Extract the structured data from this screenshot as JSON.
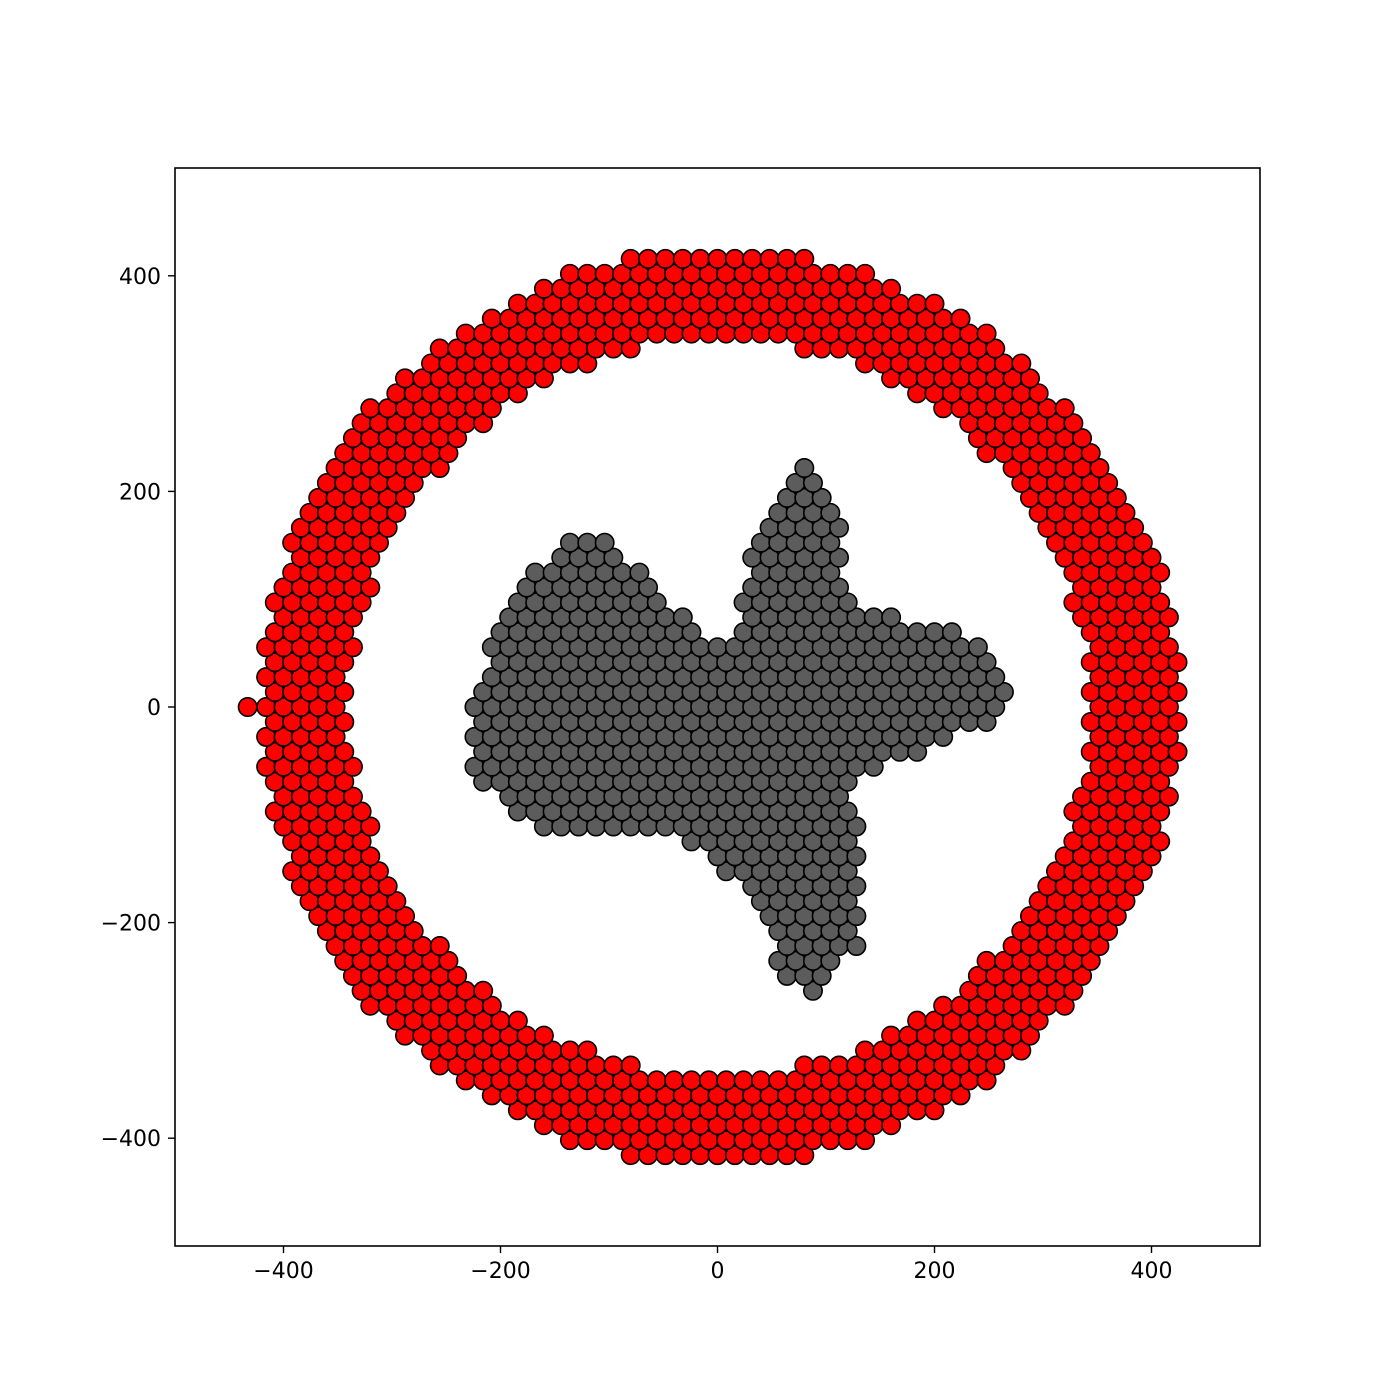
{
  "chart_data": {
    "type": "scatter",
    "title": "",
    "xlabel": "",
    "ylabel": "",
    "xlim": [
      -500,
      500
    ],
    "ylim": [
      -500,
      500
    ],
    "xticks": [
      -400,
      -200,
      0,
      200,
      400
    ],
    "yticks": [
      -400,
      -200,
      0,
      200,
      400
    ],
    "xtick_labels": [
      "−400",
      "−200",
      "0",
      "200",
      "400"
    ],
    "ytick_labels": [
      "−400",
      "−200",
      "0",
      "200",
      "400"
    ],
    "grid": false,
    "legend": "none",
    "lattice_spacing": 16,
    "marker_edge_color": "#000000",
    "series": [
      {
        "color": "#ff0000",
        "shape": "ring",
        "center": [
          2,
          0
        ],
        "inner_radius": 340,
        "outer_radius": 425,
        "extra_points": [
          [
            -433,
            0
          ]
        ]
      },
      {
        "color": "#5c5c5c",
        "shape": "blob",
        "outline": [
          [
            -228,
            -15
          ],
          [
            -215,
            40
          ],
          [
            -200,
            85
          ],
          [
            -185,
            110
          ],
          [
            -155,
            140
          ],
          [
            -132,
            158
          ],
          [
            -108,
            156
          ],
          [
            -70,
            124
          ],
          [
            -42,
            98
          ],
          [
            -20,
            72
          ],
          [
            5,
            55
          ],
          [
            20,
            78
          ],
          [
            25,
            125
          ],
          [
            35,
            168
          ],
          [
            58,
            200
          ],
          [
            80,
            230
          ],
          [
            100,
            218
          ],
          [
            108,
            180
          ],
          [
            118,
            160
          ],
          [
            118,
            135
          ],
          [
            115,
            110
          ],
          [
            125,
            92
          ],
          [
            168,
            84
          ],
          [
            208,
            76
          ],
          [
            238,
            62
          ],
          [
            260,
            40
          ],
          [
            270,
            25
          ],
          [
            265,
            5
          ],
          [
            250,
            -15
          ],
          [
            208,
            -32
          ],
          [
            165,
            -50
          ],
          [
            138,
            -60
          ],
          [
            122,
            -80
          ],
          [
            132,
            -118
          ],
          [
            133,
            -175
          ],
          [
            130,
            -222
          ],
          [
            108,
            -250
          ],
          [
            82,
            -270
          ],
          [
            62,
            -255
          ],
          [
            52,
            -228
          ],
          [
            30,
            -178
          ],
          [
            2,
            -148
          ],
          [
            -15,
            -128
          ],
          [
            -45,
            -118
          ],
          [
            -82,
            -112
          ],
          [
            -118,
            -115
          ],
          [
            -158,
            -112
          ],
          [
            -200,
            -90
          ],
          [
            -225,
            -60
          ]
        ]
      }
    ]
  }
}
